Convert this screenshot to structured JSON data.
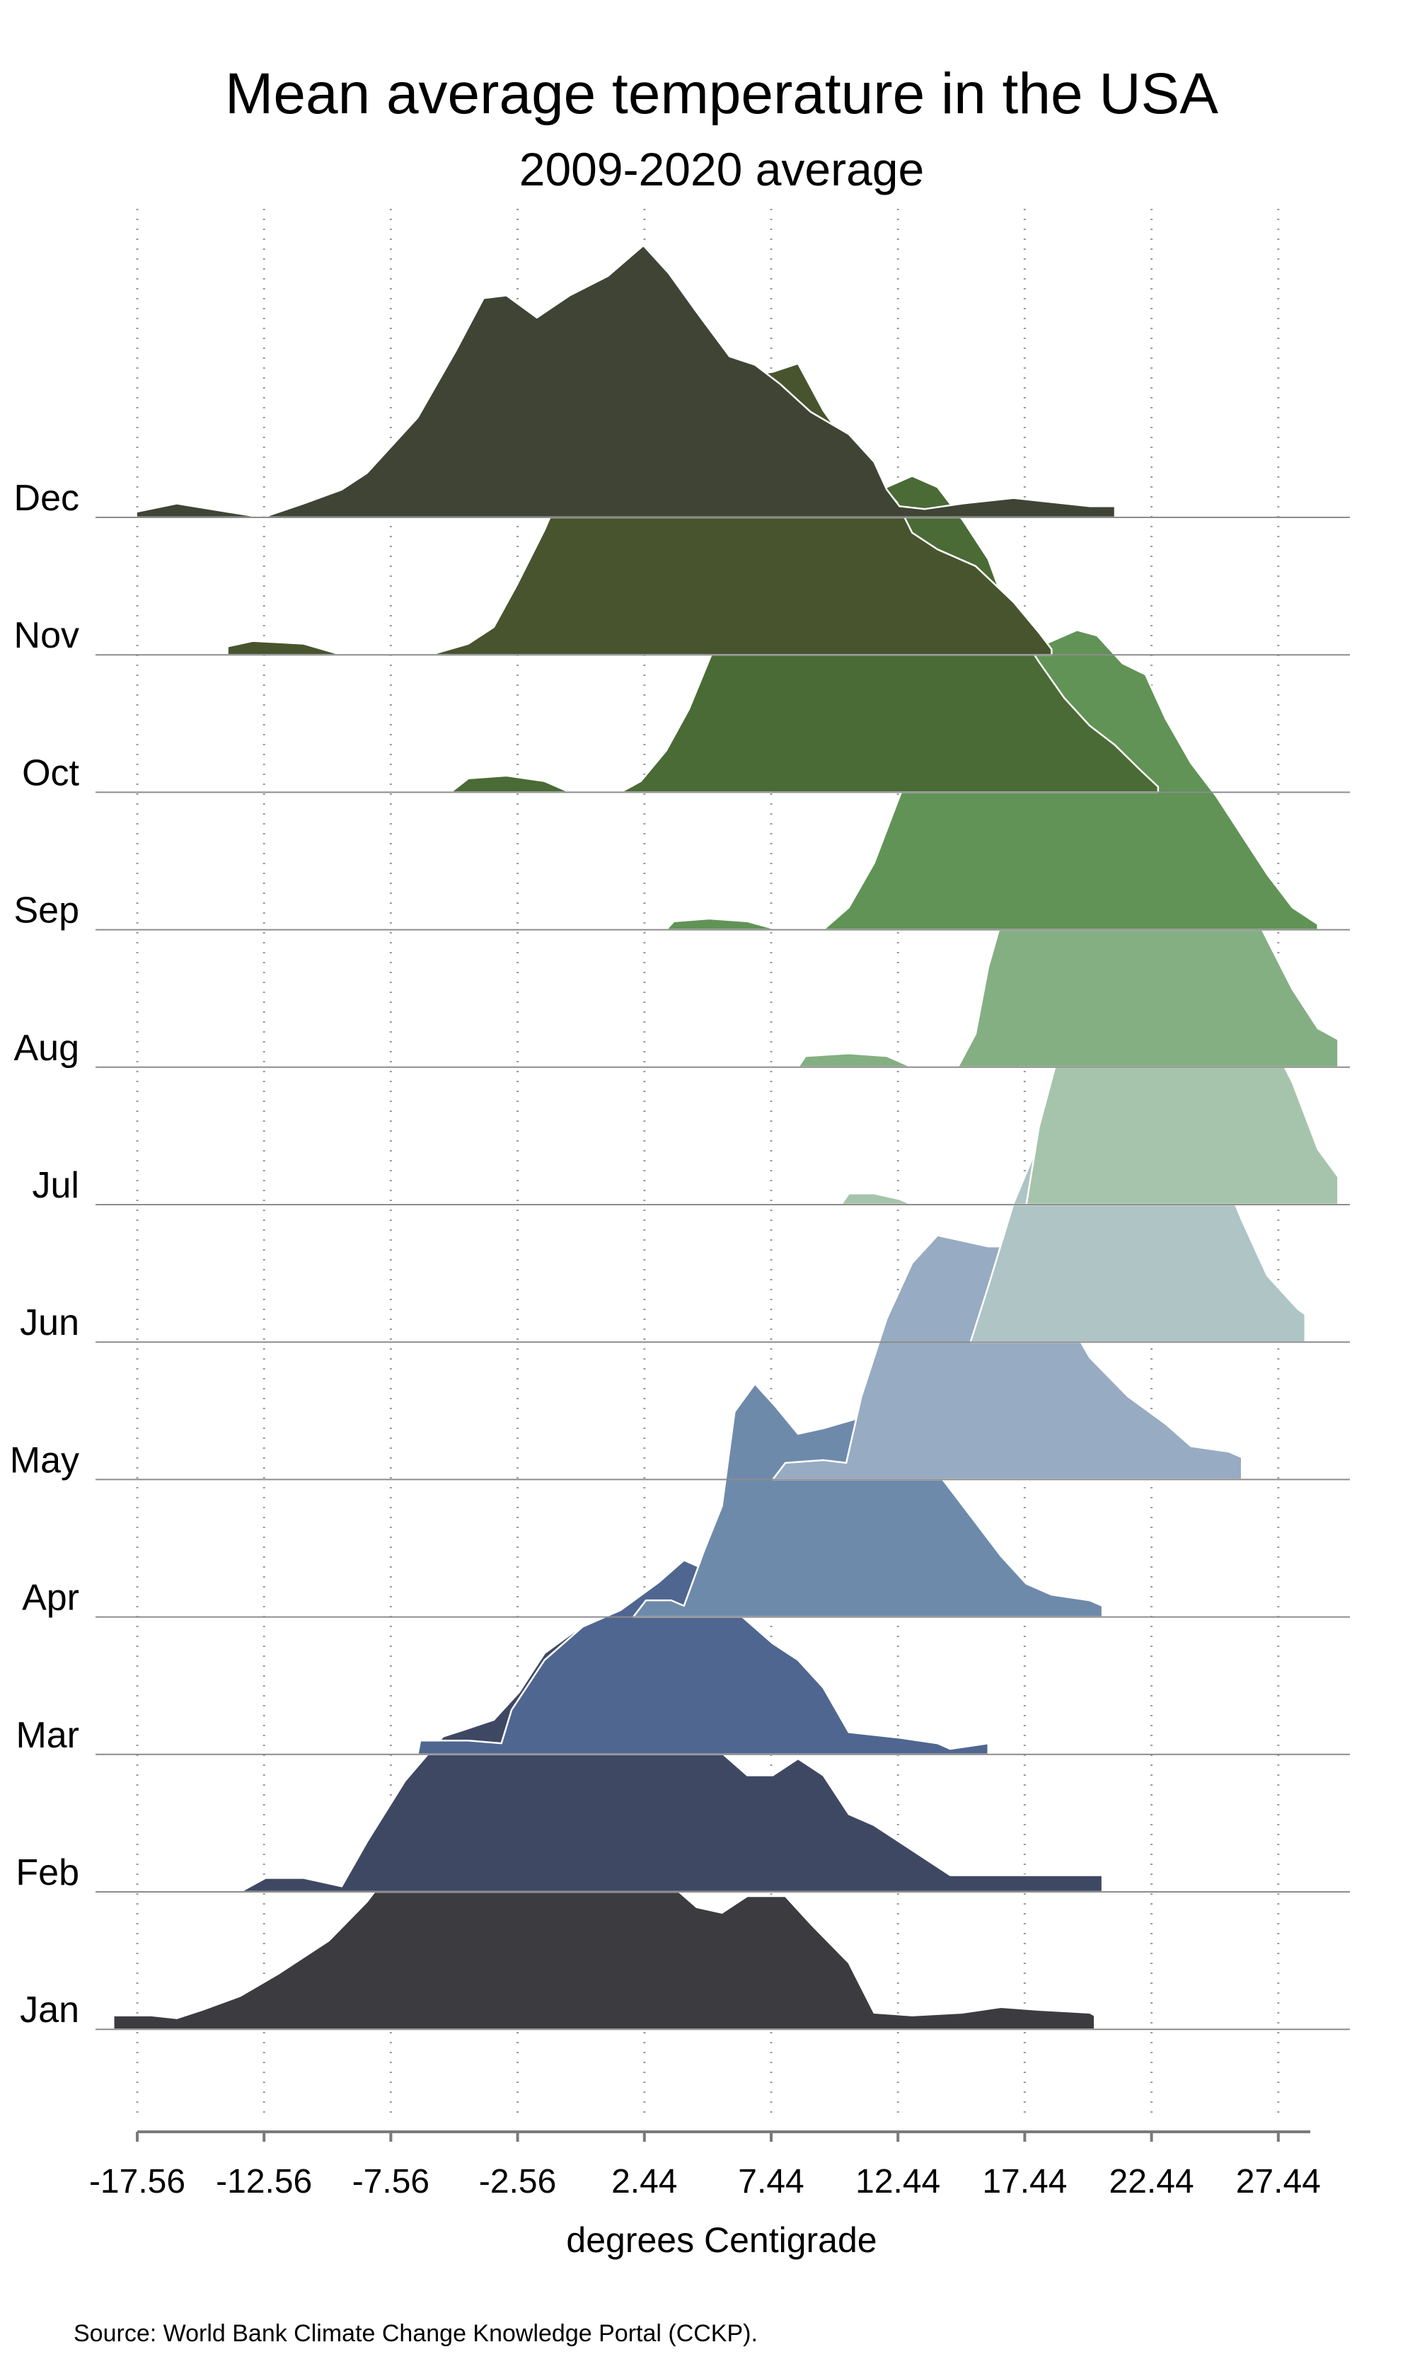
{
  "chart_data": {
    "type": "ridgeline",
    "title": "Mean average temperature in the USA",
    "subtitle": "2009-2020 average",
    "xlabel": "degrees Centigrade",
    "source": "Source: World Bank Climate Change Knowledge Portal (CCKP).",
    "xlim": [
      -18.5,
      29.8
    ],
    "x_ticks": [
      {
        "value": -17.56,
        "label": "-17.56"
      },
      {
        "value": -12.56,
        "label": "-12.56"
      },
      {
        "value": -7.56,
        "label": "-7.56"
      },
      {
        "value": -2.56,
        "label": "-2.56"
      },
      {
        "value": 2.44,
        "label": "2.44"
      },
      {
        "value": 7.44,
        "label": "7.44"
      },
      {
        "value": 12.44,
        "label": "12.44"
      },
      {
        "value": 17.44,
        "label": "17.44"
      },
      {
        "value": 22.44,
        "label": "22.44"
      },
      {
        "value": 27.44,
        "label": "27.44"
      }
    ],
    "grid": "vertical dotted",
    "series": [
      {
        "name": "Dec",
        "color": "#3f4435",
        "points": [
          [
            -17.6,
            0.02
          ],
          [
            -16,
            0.05
          ],
          [
            -14,
            0.02
          ],
          [
            -12.6,
            0
          ],
          [
            -11,
            0.05
          ],
          [
            -9.5,
            0.1
          ],
          [
            -8.5,
            0.16
          ],
          [
            -6.5,
            0.36
          ],
          [
            -5,
            0.6
          ],
          [
            -3.9,
            0.79
          ],
          [
            -3,
            0.8
          ],
          [
            -1.8,
            0.72
          ],
          [
            -0.5,
            0.8
          ],
          [
            1,
            0.87
          ],
          [
            2.4,
            0.98
          ],
          [
            3.4,
            0.88
          ],
          [
            4.5,
            0.74
          ],
          [
            5.8,
            0.58
          ],
          [
            6.8,
            0.55
          ],
          [
            7.8,
            0.48
          ],
          [
            9,
            0.38
          ],
          [
            10.5,
            0.3
          ],
          [
            11.5,
            0.2
          ],
          [
            12,
            0.1
          ],
          [
            12.5,
            0.04
          ],
          [
            13.5,
            0.03
          ],
          [
            15,
            0.05
          ],
          [
            17,
            0.07
          ],
          [
            19,
            0.05
          ],
          [
            20,
            0.04
          ],
          [
            21,
            0.04
          ]
        ]
      },
      {
        "name": "Nov",
        "color": "#48542e",
        "points": [
          [
            -14,
            0.03
          ],
          [
            -13,
            0.05
          ],
          [
            -11,
            0.04
          ],
          [
            -9.5,
            0
          ],
          [
            -6,
            0
          ],
          [
            -4.5,
            0.04
          ],
          [
            -3.5,
            0.1
          ],
          [
            -2.6,
            0.25
          ],
          [
            -1.5,
            0.45
          ],
          [
            -0.5,
            0.66
          ],
          [
            0.5,
            0.82
          ],
          [
            1.5,
            0.9
          ],
          [
            3,
            0.91
          ],
          [
            4.5,
            0.93
          ],
          [
            6,
            1.0
          ],
          [
            7.5,
            1.02
          ],
          [
            8.5,
            1.05
          ],
          [
            9.5,
            0.88
          ],
          [
            10.5,
            0.75
          ],
          [
            11.5,
            0.64
          ],
          [
            12.4,
            0.55
          ],
          [
            13,
            0.44
          ],
          [
            14,
            0.38
          ],
          [
            15.5,
            0.32
          ],
          [
            17,
            0.19
          ],
          [
            18,
            0.08
          ],
          [
            18.5,
            0.02
          ]
        ]
      },
      {
        "name": "Oct",
        "color": "#4a6b35",
        "points": [
          [
            -5.2,
            0
          ],
          [
            -4.5,
            0.05
          ],
          [
            -3,
            0.06
          ],
          [
            -1.5,
            0.04
          ],
          [
            -0.5,
            0
          ],
          [
            1.5,
            0
          ],
          [
            2.3,
            0.04
          ],
          [
            3.3,
            0.15
          ],
          [
            4.2,
            0.3
          ],
          [
            5.1,
            0.5
          ],
          [
            6.2,
            0.78
          ],
          [
            7,
            0.92
          ],
          [
            8,
            1.02
          ],
          [
            9,
            1.08
          ],
          [
            10,
            1.08
          ],
          [
            11,
            1.05
          ],
          [
            12,
            1.1
          ],
          [
            13,
            1.14
          ],
          [
            14,
            1.1
          ],
          [
            15,
            0.98
          ],
          [
            16,
            0.84
          ],
          [
            16.8,
            0.64
          ],
          [
            18,
            0.47
          ],
          [
            19,
            0.34
          ],
          [
            20,
            0.24
          ],
          [
            21,
            0.17
          ],
          [
            22,
            0.08
          ],
          [
            22.7,
            0.02
          ]
        ]
      },
      {
        "name": "Sep",
        "color": "#619356",
        "points": [
          [
            3.3,
            0
          ],
          [
            3.6,
            0.03
          ],
          [
            5,
            0.04
          ],
          [
            6.5,
            0.03
          ],
          [
            7.7,
            0
          ],
          [
            9.5,
            0
          ],
          [
            10.5,
            0.08
          ],
          [
            11.5,
            0.24
          ],
          [
            12.5,
            0.48
          ],
          [
            13.5,
            0.72
          ],
          [
            14.5,
            0.9
          ],
          [
            15.5,
            1.0
          ],
          [
            16.5,
            0.98
          ],
          [
            17.5,
            1.0
          ],
          [
            18.5,
            1.04
          ],
          [
            19.5,
            1.08
          ],
          [
            20.3,
            1.06
          ],
          [
            21.3,
            0.96
          ],
          [
            22.2,
            0.92
          ],
          [
            23,
            0.76
          ],
          [
            24,
            0.6
          ],
          [
            25,
            0.48
          ],
          [
            26,
            0.34
          ],
          [
            27,
            0.2
          ],
          [
            28,
            0.08
          ],
          [
            29,
            0.02
          ]
        ]
      },
      {
        "name": "Aug",
        "color": "#84af83",
        "points": [
          [
            8.5,
            0
          ],
          [
            8.8,
            0.04
          ],
          [
            10.5,
            0.05
          ],
          [
            12,
            0.04
          ],
          [
            13,
            0
          ],
          [
            14.8,
            0
          ],
          [
            15.5,
            0.12
          ],
          [
            16,
            0.36
          ],
          [
            17,
            0.68
          ],
          [
            18,
            0.88
          ],
          [
            19,
            0.98
          ],
          [
            20,
            1.02
          ],
          [
            21,
            1.0
          ],
          [
            22,
            1.0
          ],
          [
            23,
            1.03
          ],
          [
            24,
            0.98
          ],
          [
            25,
            0.84
          ],
          [
            26,
            0.64
          ],
          [
            27,
            0.46
          ],
          [
            28,
            0.28
          ],
          [
            29,
            0.14
          ],
          [
            29.8,
            0.1
          ]
        ]
      },
      {
        "name": "Jul",
        "color": "#a6c4ab",
        "points": [
          [
            10.2,
            0
          ],
          [
            10.5,
            0.04
          ],
          [
            11.5,
            0.04
          ],
          [
            12.5,
            0.02
          ],
          [
            13,
            0
          ],
          [
            17.5,
            0
          ],
          [
            18,
            0.28
          ],
          [
            19,
            0.62
          ],
          [
            20,
            0.88
          ],
          [
            21,
            1.0
          ],
          [
            22,
            1.02
          ],
          [
            23,
            1.01
          ],
          [
            24,
            1.02
          ],
          [
            25,
            0.97
          ],
          [
            26,
            0.84
          ],
          [
            27,
            0.62
          ],
          [
            28,
            0.44
          ],
          [
            29,
            0.2
          ],
          [
            29.8,
            0.1
          ]
        ]
      },
      {
        "name": "Jun",
        "color": "#aec4c5",
        "points": [
          [
            15.3,
            0
          ],
          [
            16,
            0.2
          ],
          [
            17,
            0.5
          ],
          [
            18,
            0.72
          ],
          [
            19,
            0.82
          ],
          [
            20,
            0.9
          ],
          [
            21,
            0.98
          ],
          [
            22,
            0.98
          ],
          [
            23,
            0.92
          ],
          [
            24,
            0.82
          ],
          [
            25,
            0.66
          ],
          [
            26,
            0.44
          ],
          [
            27,
            0.24
          ],
          [
            28.2,
            0.12
          ],
          [
            28.5,
            0.1
          ]
        ]
      },
      {
        "name": "May",
        "color": "#97abc2",
        "points": [
          [
            7.5,
            0
          ],
          [
            8,
            0.06
          ],
          [
            9.5,
            0.07
          ],
          [
            10.4,
            0.06
          ],
          [
            11,
            0.3
          ],
          [
            12,
            0.58
          ],
          [
            13,
            0.78
          ],
          [
            14,
            0.88
          ],
          [
            15,
            0.86
          ],
          [
            16,
            0.84
          ],
          [
            17,
            0.84
          ],
          [
            18,
            0.74
          ],
          [
            19,
            0.6
          ],
          [
            20,
            0.44
          ],
          [
            21.5,
            0.3
          ],
          [
            23,
            0.2
          ],
          [
            24,
            0.12
          ],
          [
            25.5,
            0.1
          ],
          [
            26,
            0.08
          ]
        ]
      },
      {
        "name": "Apr",
        "color": "#6e8aab",
        "points": [
          [
            2,
            0
          ],
          [
            2.5,
            0.06
          ],
          [
            3.5,
            0.06
          ],
          [
            4,
            0.04
          ],
          [
            4.8,
            0.24
          ],
          [
            5.5,
            0.4
          ],
          [
            6,
            0.74
          ],
          [
            6.8,
            0.84
          ],
          [
            7.6,
            0.76
          ],
          [
            8.5,
            0.66
          ],
          [
            9.5,
            0.68
          ],
          [
            11,
            0.72
          ],
          [
            12.5,
            0.74
          ],
          [
            13.5,
            0.58
          ],
          [
            14.5,
            0.46
          ],
          [
            15.5,
            0.34
          ],
          [
            16.5,
            0.22
          ],
          [
            17.5,
            0.12
          ],
          [
            18.5,
            0.08
          ],
          [
            20,
            0.06
          ],
          [
            20.5,
            0.04
          ]
        ]
      },
      {
        "name": "Mar",
        "color": "#4f6690",
        "points": [
          [
            -6.5,
            0
          ],
          [
            -6.4,
            0.05
          ],
          [
            -4.5,
            0.05
          ],
          [
            -3.2,
            0.04
          ],
          [
            -2.8,
            0.16
          ],
          [
            -1.5,
            0.34
          ],
          [
            0,
            0.46
          ],
          [
            1.5,
            0.52
          ],
          [
            3,
            0.62
          ],
          [
            4,
            0.7
          ],
          [
            5,
            0.66
          ],
          [
            6,
            0.52
          ],
          [
            7.5,
            0.4
          ],
          [
            8.5,
            0.34
          ],
          [
            9.5,
            0.24
          ],
          [
            10.5,
            0.08
          ],
          [
            12.5,
            0.06
          ],
          [
            14,
            0.04
          ],
          [
            14.5,
            0.02
          ],
          [
            16,
            0.04
          ]
        ]
      },
      {
        "name": "Feb",
        "color": "#3f4863",
        "points": [
          [
            -13.5,
            0
          ],
          [
            -12.5,
            0.05
          ],
          [
            -11,
            0.05
          ],
          [
            -10.5,
            0.04
          ],
          [
            -9.5,
            0.02
          ],
          [
            -8.5,
            0.18
          ],
          [
            -7,
            0.4
          ],
          [
            -5.5,
            0.56
          ],
          [
            -4.8,
            0.58
          ],
          [
            -3.5,
            0.62
          ],
          [
            -2.5,
            0.72
          ],
          [
            -1.5,
            0.86
          ],
          [
            0,
            0.96
          ],
          [
            1,
            0.98
          ],
          [
            2,
            0.92
          ],
          [
            3,
            0.78
          ],
          [
            4,
            0.64
          ],
          [
            5.5,
            0.5
          ],
          [
            6.5,
            0.42
          ],
          [
            7.5,
            0.42
          ],
          [
            8.5,
            0.48
          ],
          [
            9.5,
            0.42
          ],
          [
            10.5,
            0.28
          ],
          [
            11.5,
            0.24
          ],
          [
            12.5,
            0.18
          ],
          [
            13.5,
            0.12
          ],
          [
            14.5,
            0.06
          ],
          [
            16,
            0.06
          ],
          [
            17.5,
            0.06
          ],
          [
            19,
            0.06
          ],
          [
            20.5,
            0.06
          ]
        ]
      },
      {
        "name": "Jan",
        "color": "#3c3c40",
        "points": [
          [
            -18.5,
            0.05
          ],
          [
            -17,
            0.05
          ],
          [
            -16,
            0.04
          ],
          [
            -15,
            0.07
          ],
          [
            -13.5,
            0.12
          ],
          [
            -12,
            0.2
          ],
          [
            -10,
            0.32
          ],
          [
            -8.5,
            0.46
          ],
          [
            -7.5,
            0.58
          ],
          [
            -6,
            0.7
          ],
          [
            -4.5,
            0.82
          ],
          [
            -3.5,
            0.84
          ],
          [
            -2,
            0.88
          ],
          [
            -1,
            0.94
          ],
          [
            0,
            0.96
          ],
          [
            1,
            0.86
          ],
          [
            2,
            0.72
          ],
          [
            3,
            0.56
          ],
          [
            4.5,
            0.44
          ],
          [
            5.5,
            0.42
          ],
          [
            6.5,
            0.48
          ],
          [
            8,
            0.48
          ],
          [
            9,
            0.38
          ],
          [
            10.5,
            0.24
          ],
          [
            11.5,
            0.06
          ],
          [
            13,
            0.05
          ],
          [
            15,
            0.06
          ],
          [
            16.5,
            0.08
          ],
          [
            18,
            0.07
          ],
          [
            20,
            0.06
          ],
          [
            20.2,
            0.05
          ]
        ]
      }
    ]
  }
}
